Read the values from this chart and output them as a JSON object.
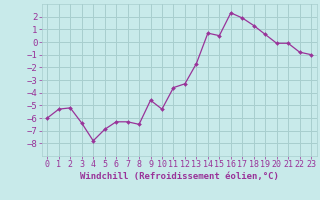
{
  "x": [
    0,
    1,
    2,
    3,
    4,
    5,
    6,
    7,
    8,
    9,
    10,
    11,
    12,
    13,
    14,
    15,
    16,
    17,
    18,
    19,
    20,
    21,
    22,
    23
  ],
  "y": [
    -6.0,
    -5.3,
    -5.2,
    -6.4,
    -7.8,
    -6.9,
    -6.3,
    -6.3,
    -6.5,
    -4.6,
    -5.3,
    -3.6,
    -3.3,
    -1.7,
    0.7,
    0.5,
    2.3,
    1.9,
    1.3,
    0.6,
    -0.1,
    -0.1,
    -0.8,
    -1.0
  ],
  "line_color": "#993399",
  "marker": "D",
  "marker_size": 2.0,
  "bg_color": "#c8eaea",
  "grid_color": "#a8cece",
  "xlabel": "Windchill (Refroidissement éolien,°C)",
  "ylim": [
    -9,
    3
  ],
  "xlim": [
    -0.5,
    23.5
  ],
  "yticks": [
    -8,
    -7,
    -6,
    -5,
    -4,
    -3,
    -2,
    -1,
    0,
    1,
    2
  ],
  "xticks": [
    0,
    1,
    2,
    3,
    4,
    5,
    6,
    7,
    8,
    9,
    10,
    11,
    12,
    13,
    14,
    15,
    16,
    17,
    18,
    19,
    20,
    21,
    22,
    23
  ],
  "tick_color": "#993399",
  "label_color": "#993399",
  "tick_fontsize": 6.0,
  "xlabel_fontsize": 6.5
}
